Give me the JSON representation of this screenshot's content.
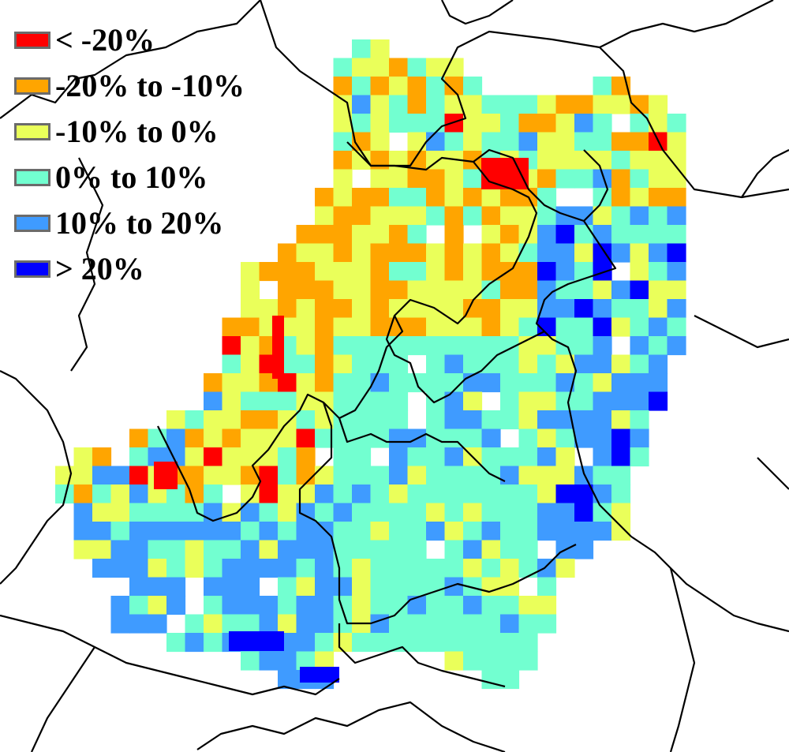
{
  "legend": {
    "items": [
      {
        "label": "< -20%",
        "color": "#ff0000"
      },
      {
        "label": "-20% to -10%",
        "color": "#ffa500"
      },
      {
        "label": "-10% to 0%",
        "color": "#eaff5a"
      },
      {
        "label": " 0% to 10%",
        "color": "#72ffd0"
      },
      {
        "label": " 10% to 20%",
        "color": "#3f9bff"
      },
      {
        "label": "> 20%",
        "color": "#0000ff"
      }
    ]
  },
  "map": {
    "category_colors": {
      "R": "#ff0000",
      "O": "#ffa500",
      "Y": "#eaff5a",
      "C": "#72ffd0",
      "B": "#3f9bff",
      "D": "#0000ff"
    },
    "cell_size_km": null
  }
}
